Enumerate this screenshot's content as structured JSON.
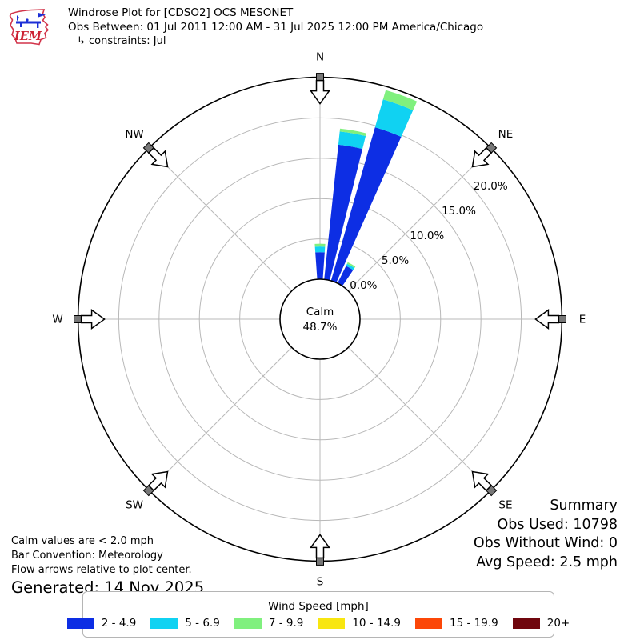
{
  "header": {
    "logo": {
      "text": "IEM"
    },
    "title": "Windrose Plot for [CDSO2] OCS MESONET",
    "subtitle": "Obs Between: 01 Jul 2011 12:00 AM - 31 Jul 2025 12:00 PM America/Chicago",
    "constraints": "↳ constraints: Jul"
  },
  "chart_data": {
    "type": "windrose",
    "title": "Windrose Plot for [CDSO2] OCS MESONET",
    "units": "mph",
    "bar_convention": "Meteorology",
    "sector_width_deg": 10,
    "bar_width_deg": 8,
    "r_max_pct": 25,
    "grid_color": "#b8b8b8",
    "calm": {
      "label": "Calm",
      "value_pct": 48.7,
      "value_label": "48.7%",
      "threshold": "< 2.0 mph"
    },
    "radial_ticks": [
      {
        "pct": 0,
        "label": "0.0%"
      },
      {
        "pct": 5,
        "label": "5.0%"
      },
      {
        "pct": 10,
        "label": "10.0%"
      },
      {
        "pct": 15,
        "label": "15.0%"
      },
      {
        "pct": 20,
        "label": "20.0%"
      }
    ],
    "compass_points": [
      {
        "label": "N",
        "deg": 0
      },
      {
        "label": "NE",
        "deg": 45
      },
      {
        "label": "E",
        "deg": 90
      },
      {
        "label": "SE",
        "deg": 135
      },
      {
        "label": "S",
        "deg": 180
      },
      {
        "label": "SW",
        "deg": 225
      },
      {
        "label": "W",
        "deg": 270
      },
      {
        "label": "NW",
        "deg": 315
      }
    ],
    "speed_bins": [
      {
        "label": "2 - 4.9",
        "color": "#0d2ee4"
      },
      {
        "label": "5 - 6.9",
        "color": "#10d2f2"
      },
      {
        "label": "7 - 9.9",
        "color": "#80f07e"
      },
      {
        "label": "10 - 14.9",
        "color": "#f8e610"
      },
      {
        "label": "15 - 19.9",
        "color": "#fc4708"
      },
      {
        "label": "20+",
        "color": "#70060e"
      }
    ],
    "bars": [
      {
        "direction_deg": 0,
        "segments_pct": [
          3.35,
          0.7,
          0.35,
          0,
          0,
          0
        ],
        "total_pct": 4.4
      },
      {
        "direction_deg": 10,
        "segments_pct": [
          16.8,
          1.65,
          0.35,
          0,
          0,
          0
        ],
        "total_pct": 18.8
      },
      {
        "direction_deg": 20,
        "segments_pct": [
          19.8,
          3.6,
          1.2,
          0,
          0,
          0
        ],
        "total_pct": 24.6
      },
      {
        "direction_deg": 30,
        "segments_pct": [
          2.4,
          0.3,
          0.2,
          0,
          0,
          0
        ],
        "total_pct": 2.9
      }
    ]
  },
  "summary": {
    "title": "Summary",
    "obs_used": "Obs Used: 10798",
    "obs_without_wind": "Obs Without Wind: 0",
    "avg_speed": "Avg Speed: 2.5 mph"
  },
  "footnotes": {
    "line1": "Calm values are < 2.0 mph",
    "line2": "Bar Convention: Meteorology",
    "line3": "Flow arrows relative to plot center.",
    "generated": "Generated: 14 Nov 2025"
  },
  "legend": {
    "title": "Wind Speed [mph]"
  }
}
